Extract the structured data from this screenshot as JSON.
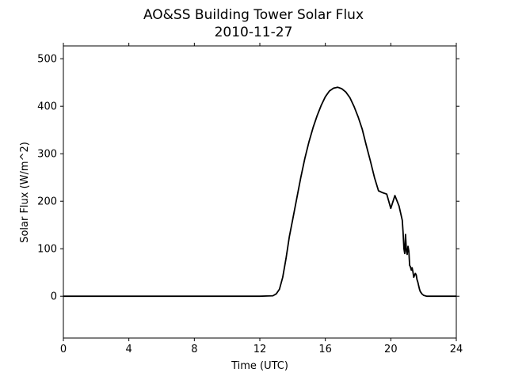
{
  "chart_data": {
    "type": "line",
    "title": "AO&SS Building Tower Solar Flux",
    "subtitle": "2010-11-27",
    "xlabel": "Time (UTC)",
    "ylabel": "Solar Flux (W/m^2)",
    "xlim": [
      0,
      24
    ],
    "ylim": [
      -88,
      527
    ],
    "xticks": [
      0,
      4,
      8,
      12,
      16,
      20,
      24
    ],
    "yticks": [
      0,
      100,
      200,
      300,
      400,
      500
    ],
    "grid": false,
    "series": [
      {
        "color": "#000000",
        "x": [
          0,
          4,
          8,
          12,
          12.8,
          13.0,
          13.2,
          13.4,
          13.6,
          13.8,
          14.0,
          14.25,
          14.5,
          14.75,
          15.0,
          15.25,
          15.5,
          15.75,
          16.0,
          16.25,
          16.5,
          16.75,
          17.0,
          17.25,
          17.5,
          17.75,
          18.0,
          18.25,
          18.5,
          18.75,
          19.0,
          19.25,
          19.5,
          19.75,
          20.0,
          20.25,
          20.5,
          20.7,
          20.75,
          20.8,
          20.85,
          20.9,
          20.95,
          21.0,
          21.05,
          21.1,
          21.15,
          21.2,
          21.25,
          21.3,
          21.35,
          21.4,
          21.5,
          21.55,
          21.6,
          21.65,
          21.7,
          21.75,
          21.8,
          21.9,
          22.0,
          22.1,
          22.2,
          22.35,
          22.5,
          22.7,
          23.0,
          23.5,
          24
        ],
        "y": [
          0,
          0,
          0,
          0,
          1,
          5,
          15,
          40,
          80,
          125,
          160,
          205,
          250,
          290,
          325,
          355,
          380,
          402,
          420,
          432,
          438,
          440,
          437,
          430,
          418,
          400,
          378,
          352,
          318,
          285,
          250,
          222,
          218,
          215,
          185,
          212,
          190,
          160,
          135,
          100,
          90,
          130,
          95,
          88,
          105,
          95,
          65,
          62,
          55,
          60,
          52,
          40,
          48,
          45,
          35,
          30,
          22,
          15,
          10,
          5,
          2,
          1,
          0,
          0,
          0,
          0,
          0,
          0,
          0
        ]
      }
    ]
  }
}
